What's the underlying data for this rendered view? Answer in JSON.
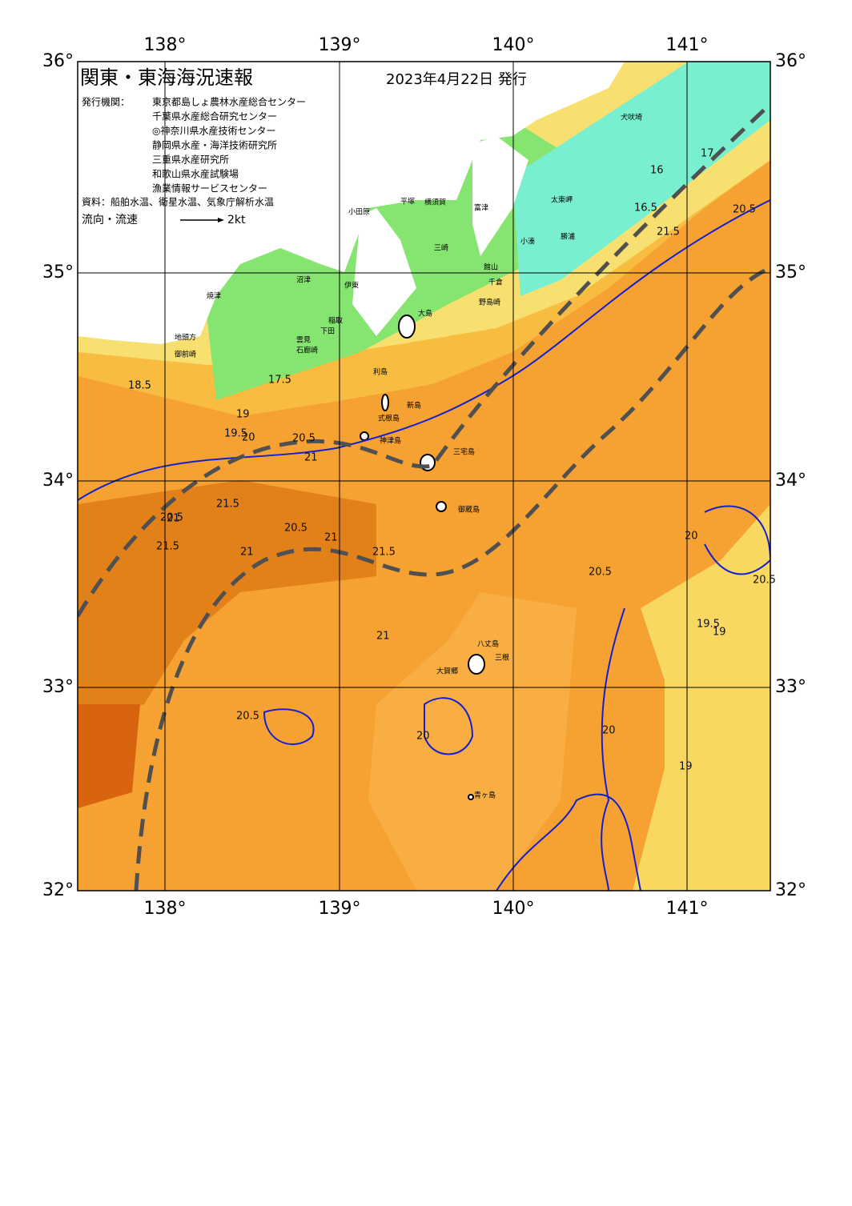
{
  "header": {
    "title": "関東・東海海況速報",
    "date": "2023年4月22日 発行"
  },
  "agencies": {
    "label": "発行機関：",
    "names": [
      "東京都島しょ農林水産総合センター",
      "千葉県水産総合研究センター",
      "◎神奈川県水産技術センター",
      "静岡県水産・海洋技術研究所",
      "三重県水産研究所",
      "和歌山県水産試験場",
      "漁業情報サービスセンター"
    ]
  },
  "sources": "資料：船舶水温、衛星水温、気象庁解析水温",
  "legend": {
    "label": "流向・流速",
    "scale": "2kt"
  },
  "axes": {
    "lon_labels": [
      "138°",
      "139°",
      "140°",
      "141°"
    ],
    "lat_labels": [
      "36°",
      "35°",
      "34°",
      "33°",
      "32°"
    ]
  },
  "places": [
    "大島",
    "利島",
    "新島",
    "式根島",
    "神津島",
    "三宅島",
    "御蔵島",
    "八丈島",
    "三根",
    "大賀郷",
    "青ヶ島",
    "犬吠埼",
    "太東岬",
    "勝浦",
    "小湊",
    "館山",
    "千倉",
    "野島崎",
    "富津",
    "横須賀",
    "三崎",
    "平塚",
    "小田原",
    "沼津",
    "伊東",
    "稲取",
    "下田",
    "石廊崎",
    "焼津",
    "御前崎",
    "地頭方",
    "雲見"
  ],
  "isotherms": [
    17.5,
    18.5,
    19,
    19.5,
    20,
    20.5,
    21,
    21.5,
    20.5,
    21,
    21.5,
    21,
    20.5,
    20,
    19.5,
    19,
    20.5,
    21,
    20.5,
    20,
    17,
    16,
    16.5,
    21.5,
    20.5,
    21,
    20,
    20.5,
    19,
    21.5
  ]
}
